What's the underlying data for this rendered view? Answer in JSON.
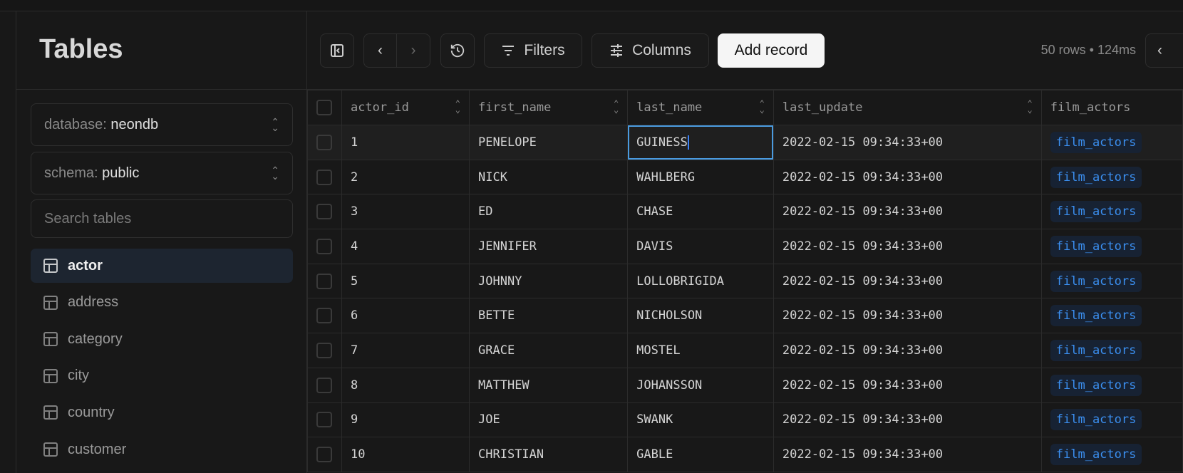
{
  "sidebar": {
    "title": "Tables",
    "database": {
      "label": "database:",
      "value": "neondb"
    },
    "schema": {
      "label": "schema:",
      "value": "public"
    },
    "search_placeholder": "Search tables",
    "items": [
      {
        "label": "actor",
        "active": true
      },
      {
        "label": "address"
      },
      {
        "label": "category"
      },
      {
        "label": "city"
      },
      {
        "label": "country"
      },
      {
        "label": "customer"
      }
    ]
  },
  "toolbar": {
    "filters": "Filters",
    "columns": "Columns",
    "add_record": "Add record",
    "status": "50 rows • 124ms"
  },
  "table": {
    "columns": [
      "actor_id",
      "first_name",
      "last_name",
      "last_update",
      "film_actors"
    ],
    "rows": [
      [
        "1",
        "PENELOPE",
        "GUINESS",
        "2022-02-15 09:34:33+00",
        "film_actors"
      ],
      [
        "2",
        "NICK",
        "WAHLBERG",
        "2022-02-15 09:34:33+00",
        "film_actors"
      ],
      [
        "3",
        "ED",
        "CHASE",
        "2022-02-15 09:34:33+00",
        "film_actors"
      ],
      [
        "4",
        "JENNIFER",
        "DAVIS",
        "2022-02-15 09:34:33+00",
        "film_actors"
      ],
      [
        "5",
        "JOHNNY",
        "LOLLOBRIGIDA",
        "2022-02-15 09:34:33+00",
        "film_actors"
      ],
      [
        "6",
        "BETTE",
        "NICHOLSON",
        "2022-02-15 09:34:33+00",
        "film_actors"
      ],
      [
        "7",
        "GRACE",
        "MOSTEL",
        "2022-02-15 09:34:33+00",
        "film_actors"
      ],
      [
        "8",
        "MATTHEW",
        "JOHANSSON",
        "2022-02-15 09:34:33+00",
        "film_actors"
      ],
      [
        "9",
        "JOE",
        "SWANK",
        "2022-02-15 09:34:33+00",
        "film_actors"
      ],
      [
        "10",
        "CHRISTIAN",
        "GABLE",
        "2022-02-15 09:34:33+00",
        "film_actors"
      ]
    ]
  },
  "colors": {
    "accent": "#3b8ff0",
    "selected_bg": "#1d2530",
    "focus_outline": "#4a9be0"
  }
}
